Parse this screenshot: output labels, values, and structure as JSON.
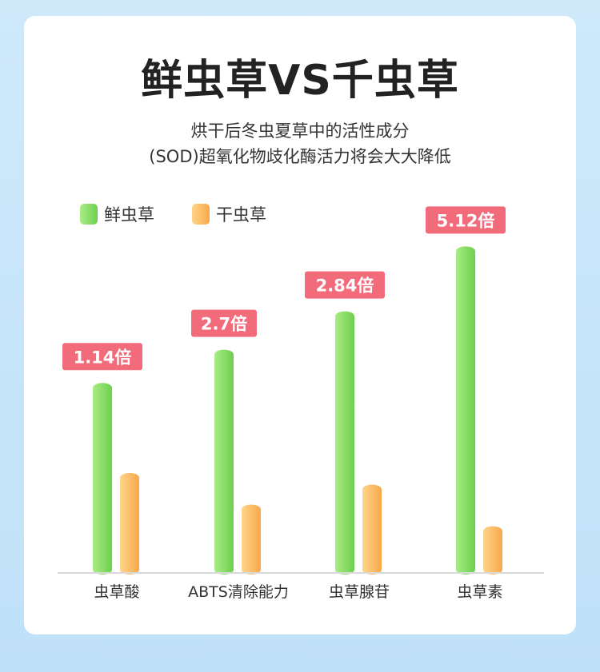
{
  "title": "鲜虫草VS千虫草",
  "subtitle_lines": [
    "烘干后冬虫夏草中的活性成分",
    "(SOD)超氧化物歧化酶活力将会大大降低"
  ],
  "colors": {
    "fresh_light": "#a9ec86",
    "fresh_dark": "#6dcf4d",
    "dry_light": "#ffd48a",
    "dry_dark": "#f7a84a",
    "badge": "#f26b7a",
    "axis": "#d9d9d9"
  },
  "chart_data": {
    "type": "bar",
    "categories": [
      "虫草酸",
      "ABTS清除能力",
      "虫草腺苷",
      "虫草素"
    ],
    "series": [
      {
        "name": "鲜虫草",
        "values": [
          1.14,
          1.34,
          1.57,
          1.96
        ]
      },
      {
        "name": "干虫草",
        "values": [
          0.6,
          0.41,
          0.53,
          0.28
        ]
      }
    ],
    "annotations": [
      "1.14倍",
      "2.7倍",
      "2.84倍",
      "5.12倍"
    ],
    "legend": [
      "鲜虫草",
      "干虫草"
    ],
    "legend_position": "top-left",
    "grid": false,
    "ylim": [
      0,
      2.0
    ]
  }
}
